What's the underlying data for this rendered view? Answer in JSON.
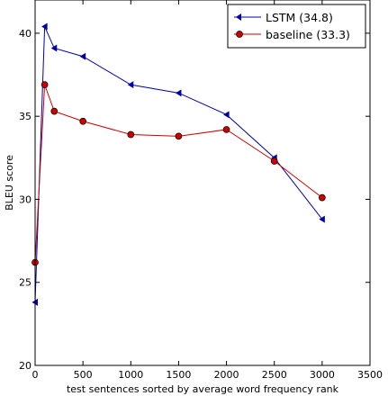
{
  "chart_data": {
    "type": "line",
    "title": "",
    "xlabel": "test sentences sorted by average word frequency rank",
    "ylabel": "BLEU score",
    "xlim": [
      0,
      3500
    ],
    "ylim": [
      20,
      42
    ],
    "xticks": [
      "0",
      "500",
      "1000",
      "1500",
      "2000",
      "2500",
      "3000",
      "3500"
    ],
    "yticks": [
      "20",
      "25",
      "30",
      "35",
      "40"
    ],
    "grid": false,
    "legend_position": "top-right",
    "series": [
      {
        "name": "LSTM  (34.8)",
        "color": "#0000aa",
        "marker": "left-triangle",
        "x": [
          0,
          100,
          200,
          500,
          1000,
          1500,
          2000,
          2500,
          3000
        ],
        "y": [
          23.8,
          40.4,
          39.1,
          38.6,
          36.9,
          36.4,
          35.1,
          32.5,
          28.8
        ]
      },
      {
        "name": "baseline (33.3)",
        "color": "#cc0000",
        "marker": "circle",
        "x": [
          0,
          100,
          200,
          500,
          1000,
          1500,
          2000,
          2500,
          3000
        ],
        "y": [
          26.2,
          36.9,
          35.3,
          34.7,
          33.9,
          33.8,
          34.2,
          32.3,
          30.1
        ]
      }
    ]
  }
}
